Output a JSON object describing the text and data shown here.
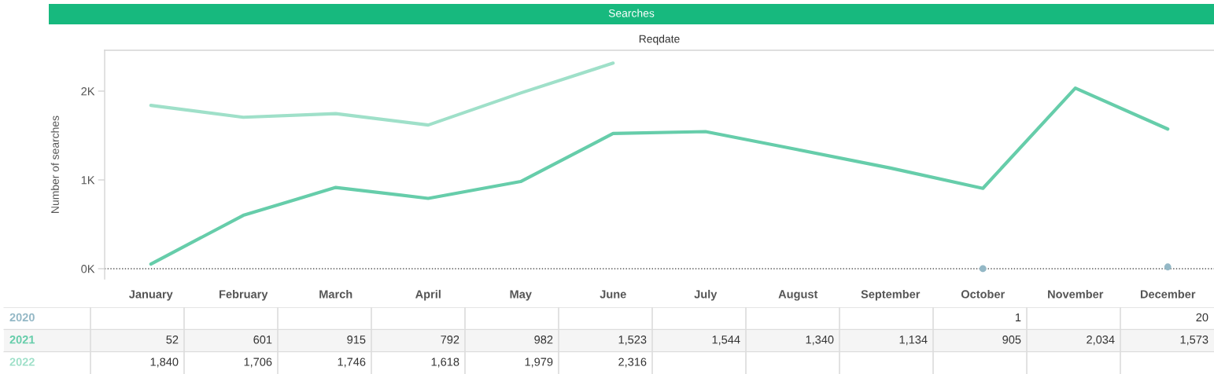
{
  "chart_data": {
    "type": "line",
    "title": "Searches",
    "subtitle": "Reqdate",
    "ylabel": "Number of searches",
    "categories": [
      "January",
      "February",
      "March",
      "April",
      "May",
      "June",
      "July",
      "August",
      "September",
      "October",
      "November",
      "December"
    ],
    "series": [
      {
        "name": "2020",
        "type": "scatter",
        "color": "#94b8c6",
        "marker": "circle",
        "values": [
          null,
          null,
          null,
          null,
          null,
          null,
          null,
          null,
          null,
          1,
          null,
          20
        ],
        "value_labels": [
          null,
          null,
          null,
          null,
          null,
          null,
          null,
          null,
          null,
          "1",
          null,
          "20"
        ]
      },
      {
        "name": "2021",
        "color": "#66cdaa",
        "values": [
          52,
          601,
          915,
          792,
          982,
          1523,
          1544,
          1340,
          1134,
          905,
          2034,
          1573
        ],
        "value_labels": [
          "52",
          "601",
          "915",
          "792",
          "982",
          "1,523",
          "1,544",
          "1,340",
          "1,134",
          "905",
          "2,034",
          "1,573"
        ]
      },
      {
        "name": "2022",
        "color": "#9fe0c9",
        "values": [
          1840,
          1706,
          1746,
          1618,
          1979,
          2316,
          null,
          null,
          null,
          null,
          null,
          null
        ],
        "value_labels": [
          "1,840",
          "1,706",
          "1,746",
          "1,618",
          "1,979",
          "2,316",
          null,
          null,
          null,
          null,
          null,
          null
        ]
      }
    ],
    "ylim": [
      -115,
      2460
    ],
    "yticks": [
      {
        "value": 0,
        "label": "0K"
      },
      {
        "value": 1000,
        "label": "1K"
      },
      {
        "value": 2000,
        "label": "2K"
      }
    ],
    "ref_lines": [
      {
        "axis": "y",
        "value": 0,
        "color": "#555555",
        "line_style": "dotted"
      }
    ],
    "marker": "none",
    "line_style": "solid",
    "grid": false
  }
}
